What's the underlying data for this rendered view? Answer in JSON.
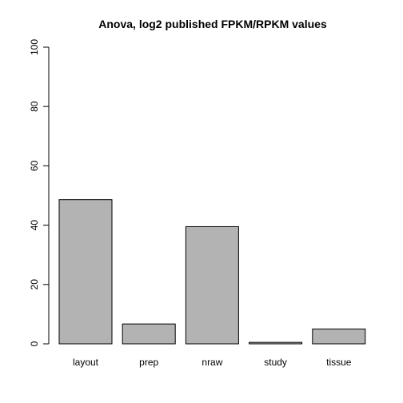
{
  "chart_data": {
    "type": "bar",
    "title": "Anova, log2 published FPKM/RPKM values",
    "xlabel": "",
    "ylabel": "",
    "categories": [
      "layout",
      "prep",
      "nraw",
      "study",
      "tissue"
    ],
    "values": [
      48.6,
      6.7,
      39.5,
      0.5,
      5.0
    ],
    "ylim": [
      0,
      100
    ],
    "yticks": [
      0,
      20,
      40,
      60,
      80,
      100
    ],
    "grid": false,
    "legend": "none",
    "colors": {
      "bar_fill": "#b3b3b3",
      "bar_stroke": "#000000",
      "axis": "#000000",
      "background": "#ffffff"
    }
  }
}
